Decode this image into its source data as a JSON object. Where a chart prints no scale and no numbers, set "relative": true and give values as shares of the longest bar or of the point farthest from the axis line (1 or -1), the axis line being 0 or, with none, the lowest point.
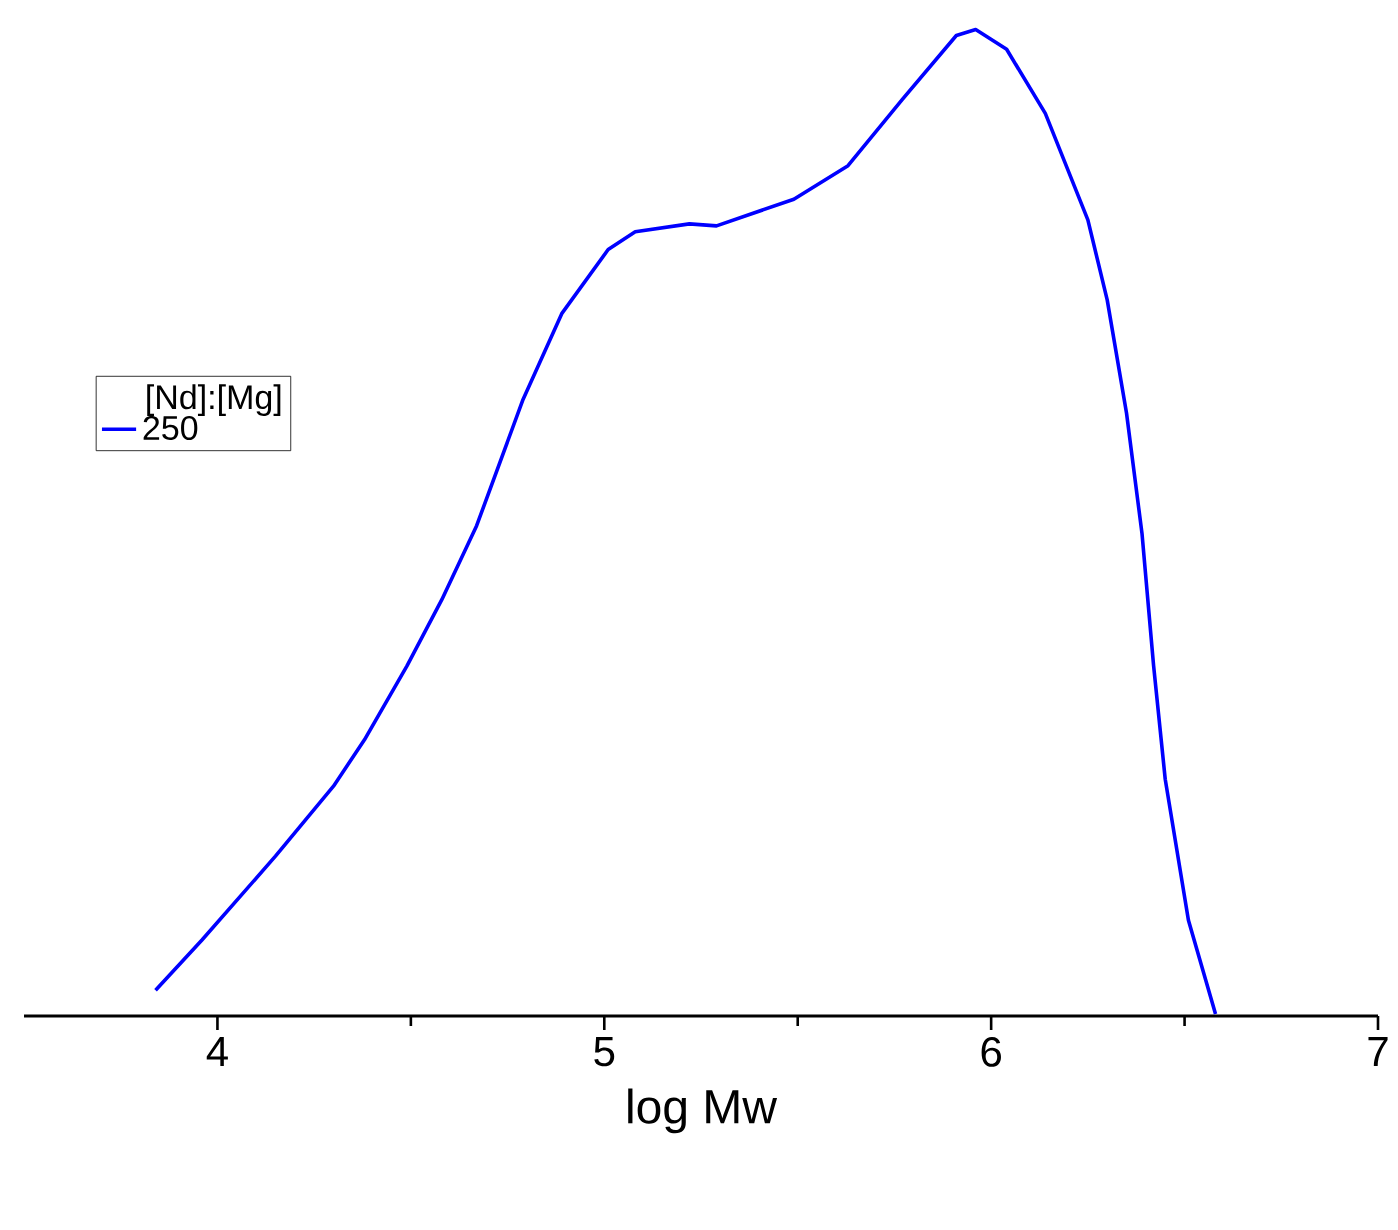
{
  "chart_data": {
    "type": "line",
    "xlabel": "log Mw",
    "legend_title": "[Nd]:[Mg]",
    "relative": true,
    "legend": "left",
    "line_style": "solid",
    "xlim": [
      3.5,
      7
    ],
    "xticks": [
      4,
      5,
      6,
      7
    ],
    "series": [
      {
        "name": "250",
        "color": "#0000ff",
        "x": [
          3.84,
          3.96,
          4.15,
          4.3,
          4.38,
          4.49,
          4.58,
          4.67,
          4.79,
          4.89,
          5.01,
          5.08,
          5.22,
          5.29,
          5.49,
          5.63,
          5.77,
          5.91,
          5.96,
          6.04,
          6.14,
          6.25,
          6.3,
          6.35,
          6.39,
          6.42,
          6.45,
          6.51,
          6.58
        ],
        "values": [
          0.026,
          0.077,
          0.162,
          0.233,
          0.28,
          0.355,
          0.422,
          0.497,
          0.625,
          0.712,
          0.777,
          0.795,
          0.803,
          0.801,
          0.828,
          0.862,
          0.929,
          0.994,
          1.0,
          0.98,
          0.915,
          0.807,
          0.726,
          0.611,
          0.489,
          0.355,
          0.24,
          0.097,
          0.002
        ]
      }
    ]
  }
}
